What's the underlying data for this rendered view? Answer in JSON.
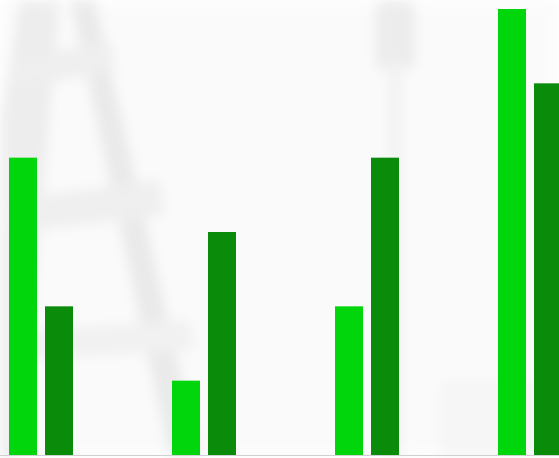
{
  "chart_data": {
    "type": "bar",
    "categories": [
      null,
      null,
      null,
      null
    ],
    "series": [
      {
        "color": "#00d60b",
        "values": [
          4,
          1,
          2,
          6
        ]
      },
      {
        "color": "#0a8c0a",
        "values": [
          2,
          3,
          4,
          5
        ]
      }
    ],
    "ylim": [
      0,
      6
    ]
  }
}
